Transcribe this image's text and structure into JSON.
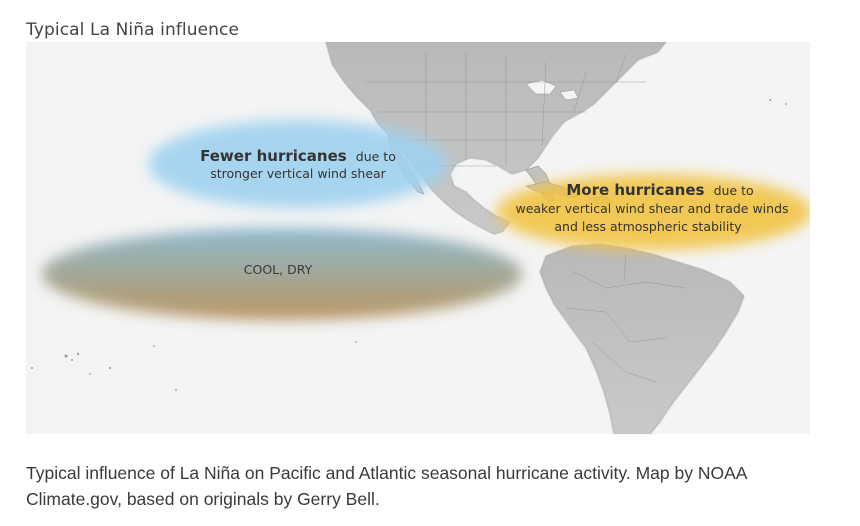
{
  "title": "Typical La Niña influence",
  "map": {
    "zones": [
      {
        "id": "pacific-hurricanes",
        "heading": "Fewer hurricanes",
        "heading_suffix": "due to",
        "line2": "stronger vertical wind shear",
        "color": "#9fd2f0"
      },
      {
        "id": "atlantic-hurricanes",
        "heading": "More hurricanes",
        "heading_suffix": "due to",
        "line2": "weaker vertical wind shear and trade winds",
        "line3": "and less atmospheric stability",
        "color": "#f2c33f"
      },
      {
        "id": "cool-dry",
        "label": "COOL, DRY",
        "color_top": "#7fb1c9",
        "color_bottom": "#b28a4e"
      }
    ]
  },
  "caption": "Typical influence of La Niña on Pacific and Atlantic seasonal hurricane activity. Map by NOAA Climate.gov, based on originals by Gerry Bell."
}
